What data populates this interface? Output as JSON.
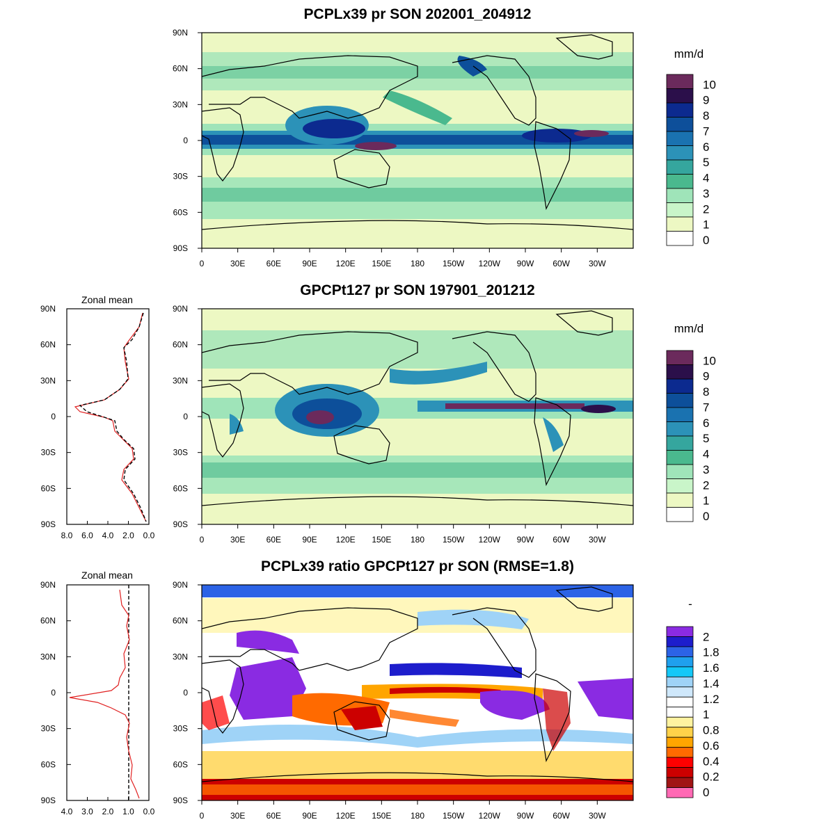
{
  "map_data": {
    "lat_ticks": [
      "90N",
      "60N",
      "30N",
      "0",
      "30S",
      "60S",
      "90S"
    ],
    "lon_ticks": [
      "0",
      "30E",
      "60E",
      "90E",
      "120E",
      "150E",
      "180",
      "150W",
      "120W",
      "90W",
      "60W",
      "30W"
    ],
    "zonal_title": "Zonal mean",
    "panels": [
      {
        "title": "PCPLx39 pr SON 202001_204912",
        "unit": "mm/d",
        "colorbar_labels": [
          "10",
          "9",
          "8",
          "7",
          "6",
          "5",
          "4",
          "3",
          "2",
          "1",
          "0"
        ],
        "colorbar_colors": [
          "#6b2a5c",
          "#2b0f4a",
          "#0c2a8f",
          "#0d4f9a",
          "#1a72b0",
          "#2c92b8",
          "#35a69e",
          "#4ab98e",
          "#9fe4b9",
          "#c9f5c9",
          "#edf8c3",
          "#ffffff"
        ]
      },
      {
        "title": "GPCPt127 pr SON 197901_201212",
        "unit": "mm/d",
        "colorbar_labels": [
          "10",
          "9",
          "8",
          "7",
          "6",
          "5",
          "4",
          "3",
          "2",
          "1",
          "0"
        ],
        "colorbar_colors": [
          "#6b2a5c",
          "#2b0f4a",
          "#0c2a8f",
          "#0d4f9a",
          "#1a72b0",
          "#2c92b8",
          "#35a69e",
          "#4ab98e",
          "#9fe4b9",
          "#c9f5c9",
          "#edf8c3",
          "#ffffff"
        ],
        "zonal_xticks": [
          "8.0",
          "6.0",
          "4.0",
          "2.0",
          "0.0"
        ]
      },
      {
        "title": "PCPLx39 ratio GPCPt127 pr SON (RMSE=1.8)",
        "unit": "-",
        "colorbar_labels": [
          "2",
          "1.8",
          "1.6",
          "1.4",
          "1.2",
          "1",
          "0.8",
          "0.6",
          "0.4",
          "0.2",
          "0"
        ],
        "colorbar_colors": [
          "#8a2be2",
          "#1d1dcc",
          "#2c63e6",
          "#1fa0ee",
          "#14c8f8",
          "#9fd3f7",
          "#cfe8fb",
          "#ffffff",
          "#ffffff",
          "#fff3a0",
          "#ffd24a",
          "#ffa500",
          "#ff6a00",
          "#ff0000",
          "#cc0000",
          "#a01414",
          "#ff69b4"
        ],
        "zonal_xticks": [
          "4.0",
          "3.0",
          "2.0",
          "1.0",
          "0.0"
        ]
      }
    ]
  }
}
